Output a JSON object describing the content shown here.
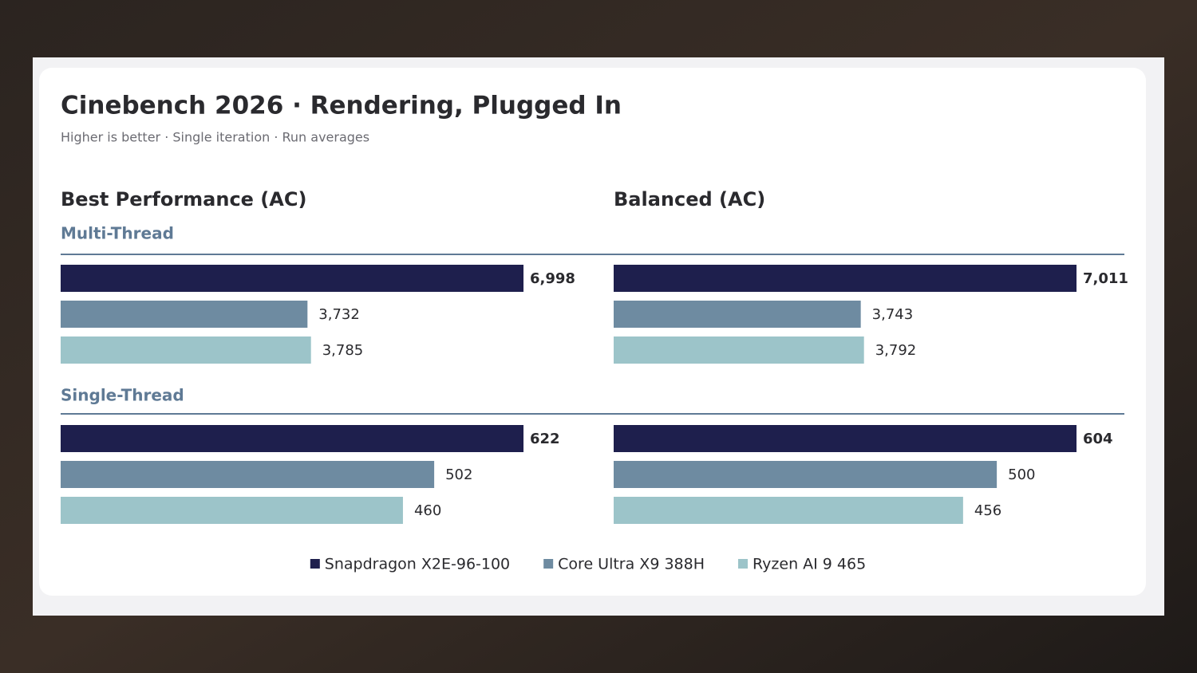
{
  "chart_data": {
    "type": "bar",
    "orientation": "horizontal",
    "title": "Cinebench 2026 · Rendering, Plugged In",
    "subtitle": "Higher is better · Single iteration · Run averages",
    "columns": [
      "Best Performance (AC)",
      "Balanced (AC)"
    ],
    "groups": [
      "Multi-Thread",
      "Single-Thread"
    ],
    "legend": "bottom",
    "series": [
      {
        "name": "Snapdragon X2E-96-100",
        "color": "#1e1f4d",
        "values": [
          6998,
          7011,
          622,
          604
        ],
        "value_labels": [
          "6,998",
          "7,011",
          "622",
          "604"
        ]
      },
      {
        "name": "Core Ultra X9 388H",
        "color": "#6e8ba1",
        "values": [
          3732,
          3743,
          502,
          500
        ],
        "value_labels": [
          "3,732",
          "3,743",
          "502",
          "500"
        ]
      },
      {
        "name": "Ryzen AI 9 465",
        "color": "#9cc4c9",
        "values": [
          3785,
          3792,
          460,
          456
        ],
        "value_labels": [
          "3,785",
          "3,792",
          "460",
          "456"
        ]
      }
    ]
  }
}
